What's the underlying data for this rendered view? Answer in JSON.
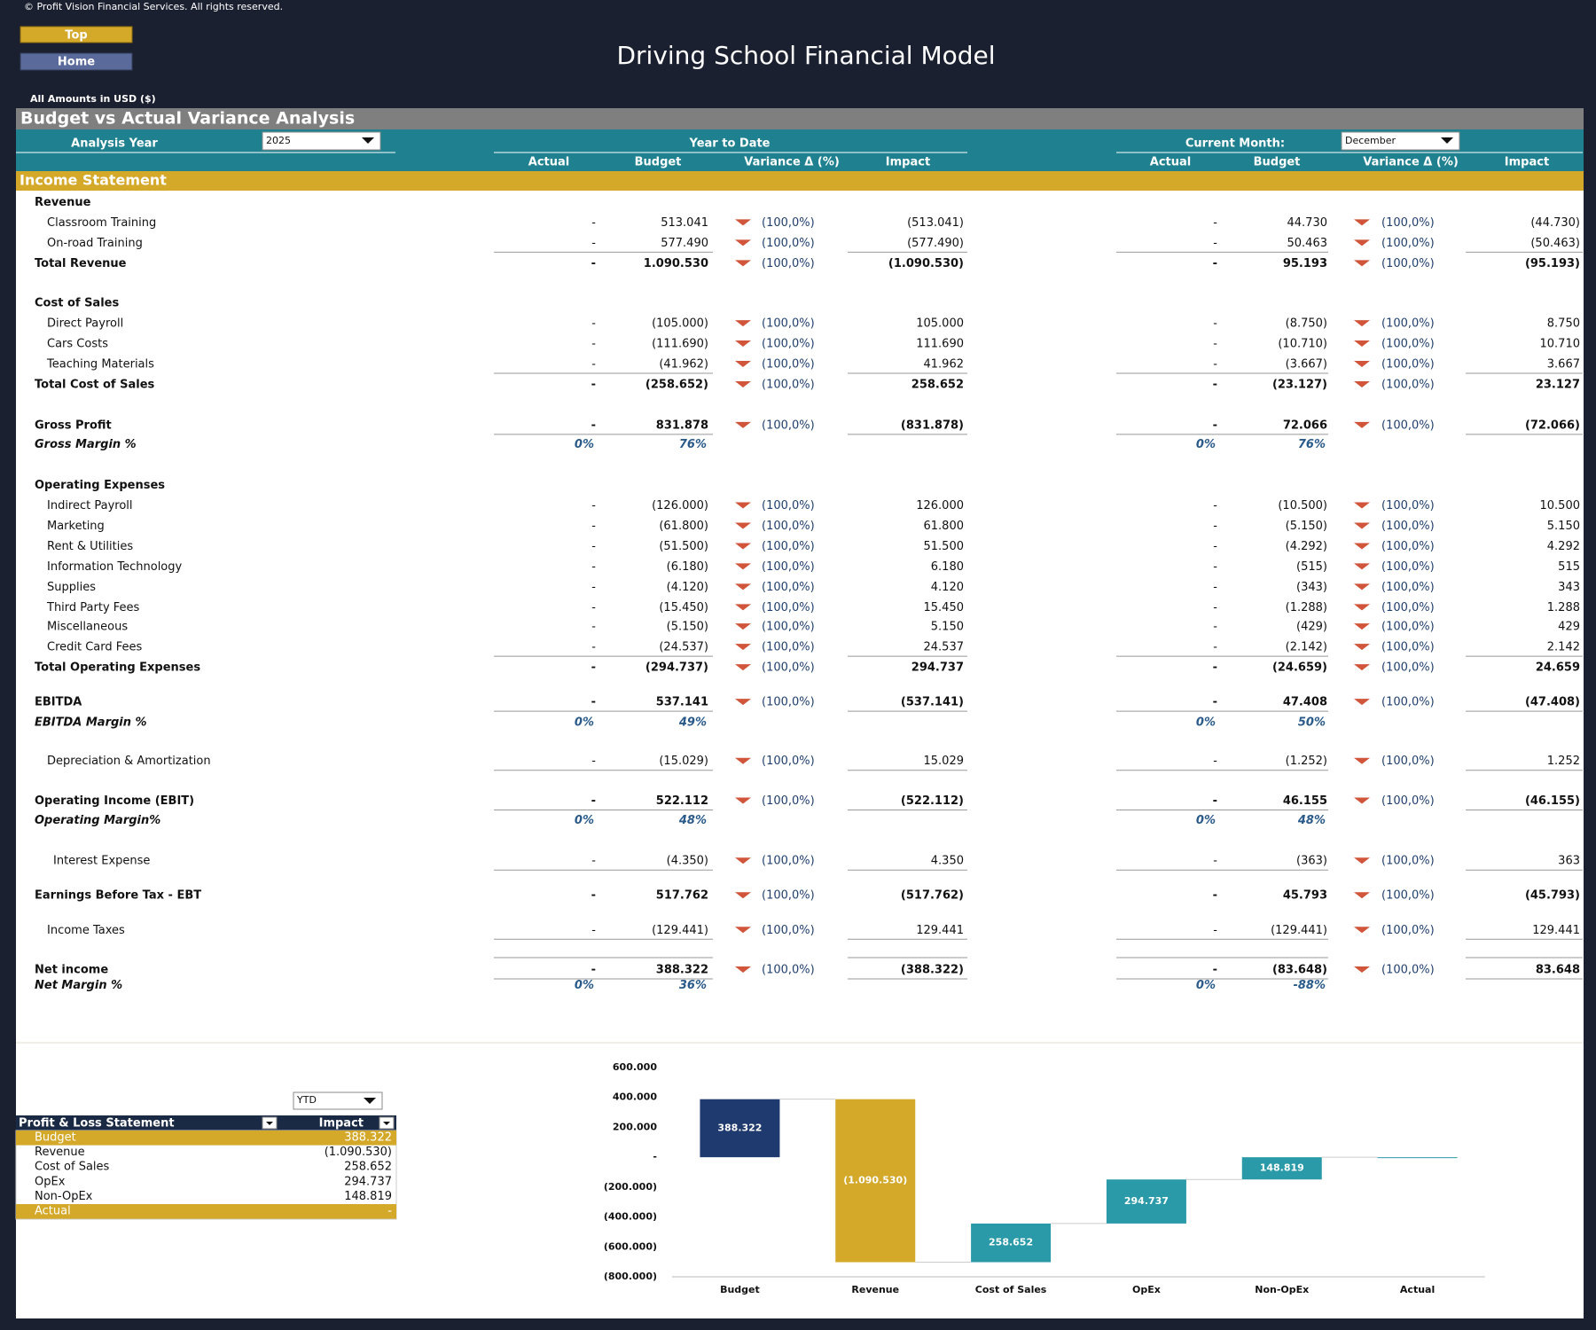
{
  "header": {
    "copyright": "© Profit Vision Financial Services. All rights reserved.",
    "buttons": [
      "Top",
      "Home"
    ],
    "title": "Driving School Financial Model",
    "amounts": "All Amounts in  USD ($)"
  },
  "section_title": "Budget vs Actual Variance Analysis",
  "controls": {
    "analysis_year_label": "Analysis Year",
    "analysis_year": "2025",
    "ytd_label": "Year to Date",
    "current_month_label": "Current Month:",
    "current_month": "December"
  },
  "columns": [
    "Actual",
    "Budget",
    "Variance Δ  (%)",
    "Impact"
  ],
  "statement_label": "Income Statement",
  "rows": [
    {
      "label": "Revenue",
      "kind": "head"
    },
    {
      "label": "Classroom Training",
      "kind": "item",
      "ytd": [
        "-",
        "513.041",
        "(100,0%)",
        "(513.041)"
      ],
      "month": [
        "-",
        "44.730",
        "(100,0%)",
        "(44.730)"
      ]
    },
    {
      "label": "On-road Training",
      "kind": "item",
      "ytd": [
        "-",
        "577.490",
        "(100,0%)",
        "(577.490)"
      ],
      "month": [
        "-",
        "50.463",
        "(100,0%)",
        "(50.463)"
      ]
    },
    {
      "label": "Total Revenue",
      "kind": "total",
      "ytd": [
        "-",
        "1.090.530",
        "(100,0%)",
        "(1.090.530)"
      ],
      "month": [
        "-",
        "95.193",
        "(100,0%)",
        "(95.193)"
      ]
    },
    {
      "label": "Cost of Sales",
      "kind": "head"
    },
    {
      "label": "Direct Payroll",
      "kind": "item",
      "ytd": [
        "-",
        "(105.000)",
        "(100,0%)",
        "105.000"
      ],
      "month": [
        "-",
        "(8.750)",
        "(100,0%)",
        "8.750"
      ]
    },
    {
      "label": "Cars Costs",
      "kind": "item",
      "ytd": [
        "-",
        "(111.690)",
        "(100,0%)",
        "111.690"
      ],
      "month": [
        "-",
        "(10.710)",
        "(100,0%)",
        "10.710"
      ]
    },
    {
      "label": "Teaching Materials",
      "kind": "item",
      "ytd": [
        "-",
        "(41.962)",
        "(100,0%)",
        "41.962"
      ],
      "month": [
        "-",
        "(3.667)",
        "(100,0%)",
        "3.667"
      ]
    },
    {
      "label": "Total Cost of Sales",
      "kind": "total",
      "ytd": [
        "-",
        "(258.652)",
        "(100,0%)",
        "258.652"
      ],
      "month": [
        "-",
        "(23.127)",
        "(100,0%)",
        "23.127"
      ]
    },
    {
      "label": "Gross Profit",
      "kind": "total",
      "ytd": [
        "-",
        "831.878",
        "(100,0%)",
        "(831.878)"
      ],
      "month": [
        "-",
        "72.066",
        "(100,0%)",
        "(72.066)"
      ]
    },
    {
      "label": "Gross Margin %",
      "kind": "margin",
      "ytd": [
        "0%",
        "76%"
      ],
      "month": [
        "0%",
        "76%"
      ]
    },
    {
      "label": "Operating Expenses",
      "kind": "head"
    },
    {
      "label": "Indirect Payroll",
      "kind": "item",
      "ytd": [
        "-",
        "(126.000)",
        "(100,0%)",
        "126.000"
      ],
      "month": [
        "-",
        "(10.500)",
        "(100,0%)",
        "10.500"
      ]
    },
    {
      "label": "Marketing",
      "kind": "item",
      "ytd": [
        "-",
        "(61.800)",
        "(100,0%)",
        "61.800"
      ],
      "month": [
        "-",
        "(5.150)",
        "(100,0%)",
        "5.150"
      ]
    },
    {
      "label": "Rent & Utilities",
      "kind": "item",
      "ytd": [
        "-",
        "(51.500)",
        "(100,0%)",
        "51.500"
      ],
      "month": [
        "-",
        "(4.292)",
        "(100,0%)",
        "4.292"
      ]
    },
    {
      "label": "Information Technology",
      "kind": "item",
      "ytd": [
        "-",
        "(6.180)",
        "(100,0%)",
        "6.180"
      ],
      "month": [
        "-",
        "(515)",
        "(100,0%)",
        "515"
      ]
    },
    {
      "label": "Supplies",
      "kind": "item",
      "ytd": [
        "-",
        "(4.120)",
        "(100,0%)",
        "4.120"
      ],
      "month": [
        "-",
        "(343)",
        "(100,0%)",
        "343"
      ]
    },
    {
      "label": "Third Party Fees",
      "kind": "item",
      "ytd": [
        "-",
        "(15.450)",
        "(100,0%)",
        "15.450"
      ],
      "month": [
        "-",
        "(1.288)",
        "(100,0%)",
        "1.288"
      ]
    },
    {
      "label": "Miscellaneous",
      "kind": "item",
      "ytd": [
        "-",
        "(5.150)",
        "(100,0%)",
        "5.150"
      ],
      "month": [
        "-",
        "(429)",
        "(100,0%)",
        "429"
      ]
    },
    {
      "label": "Credit Card Fees",
      "kind": "item",
      "ytd": [
        "-",
        "(24.537)",
        "(100,0%)",
        "24.537"
      ],
      "month": [
        "-",
        "(2.142)",
        "(100,0%)",
        "2.142"
      ]
    },
    {
      "label": "Total Operating Expenses",
      "kind": "total",
      "ytd": [
        "-",
        "(294.737)",
        "(100,0%)",
        "294.737"
      ],
      "month": [
        "-",
        "(24.659)",
        "(100,0%)",
        "24.659"
      ]
    },
    {
      "label": "EBITDA",
      "kind": "total",
      "ytd": [
        "-",
        "537.141",
        "(100,0%)",
        "(537.141)"
      ],
      "month": [
        "-",
        "47.408",
        "(100,0%)",
        "(47.408)"
      ]
    },
    {
      "label": "EBITDA Margin %",
      "kind": "margin",
      "ytd": [
        "0%",
        "49%"
      ],
      "month": [
        "0%",
        "50%"
      ]
    },
    {
      "label": "Depreciation & Amortization",
      "kind": "item",
      "ytd": [
        "-",
        "(15.029)",
        "(100,0%)",
        "15.029"
      ],
      "month": [
        "-",
        "(1.252)",
        "(100,0%)",
        "1.252"
      ]
    },
    {
      "label": "Operating Income (EBIT)",
      "kind": "total",
      "ytd": [
        "-",
        "522.112",
        "(100,0%)",
        "(522.112)"
      ],
      "month": [
        "-",
        "46.155",
        "(100,0%)",
        "(46.155)"
      ]
    },
    {
      "label": "Operating Margin%",
      "kind": "margin",
      "ytd": [
        "0%",
        "48%"
      ],
      "month": [
        "0%",
        "48%"
      ]
    },
    {
      "label": "Interest Expense",
      "kind": "item",
      "ytd": [
        "-",
        "(4.350)",
        "(100,0%)",
        "4.350"
      ],
      "month": [
        "-",
        "(363)",
        "(100,0%)",
        "363"
      ]
    },
    {
      "label": "Earnings Before Tax - EBT",
      "kind": "total",
      "ytd": [
        "-",
        "517.762",
        "(100,0%)",
        "(517.762)"
      ],
      "month": [
        "-",
        "45.793",
        "(100,0%)",
        "(45.793)"
      ]
    },
    {
      "label": "Income Taxes",
      "kind": "item",
      "ytd": [
        "-",
        "(129.441)",
        "(100,0%)",
        "129.441"
      ],
      "month": [
        "-",
        "(129.441)",
        "(100,0%)",
        "129.441"
      ]
    },
    {
      "label": "Net income",
      "kind": "total",
      "ytd": [
        "-",
        "388.322",
        "(100,0%)",
        "(388.322)"
      ],
      "month": [
        "-",
        "(83.648)",
        "(100,0%)",
        "83.648"
      ]
    },
    {
      "label": "Net Margin %",
      "kind": "margin",
      "ytd": [
        "0%",
        "36%"
      ],
      "month": [
        "0%",
        "-88%"
      ]
    }
  ],
  "pl_table": {
    "period": "YTD",
    "header": [
      "Profit & Loss Statement",
      "Impact"
    ],
    "rows": [
      [
        "Budget",
        "388.322"
      ],
      [
        "Revenue",
        "(1.090.530)"
      ],
      [
        "Cost of Sales",
        "258.652"
      ],
      [
        "OpEx",
        "294.737"
      ],
      [
        "Non-OpEx",
        "148.819"
      ],
      [
        "Actual",
        "-"
      ]
    ]
  },
  "chart": {
    "type": "waterfall",
    "categories": [
      "Budget",
      "Revenue",
      "Cost of Sales",
      "OpEx",
      "Non-OpEx",
      "Actual"
    ],
    "values": [
      388322,
      -1090530,
      258652,
      294737,
      148819,
      0
    ],
    "value_labels": [
      "388.322",
      "(1.090.530)",
      "258.652",
      "294.737",
      "148.819",
      null
    ],
    "colors": [
      "#1f3a6e",
      "#d4a829",
      "#2a9aa8",
      "#2a9aa8",
      "#2a9aa8",
      "#2a9aa8"
    ],
    "ylim": [
      -800000,
      600000
    ],
    "yticks": [
      {
        "value": 600000,
        "label": "600.000"
      },
      {
        "value": 400000,
        "label": "400.000"
      },
      {
        "value": 200000,
        "label": "200.000"
      },
      {
        "value": 0,
        "label": "-"
      },
      {
        "value": -200000,
        "label": "(200.000)"
      },
      {
        "value": -400000,
        "label": "(400.000)"
      },
      {
        "value": -600000,
        "label": "(600.000)"
      },
      {
        "value": -800000,
        "label": "(800.000)"
      }
    ]
  }
}
